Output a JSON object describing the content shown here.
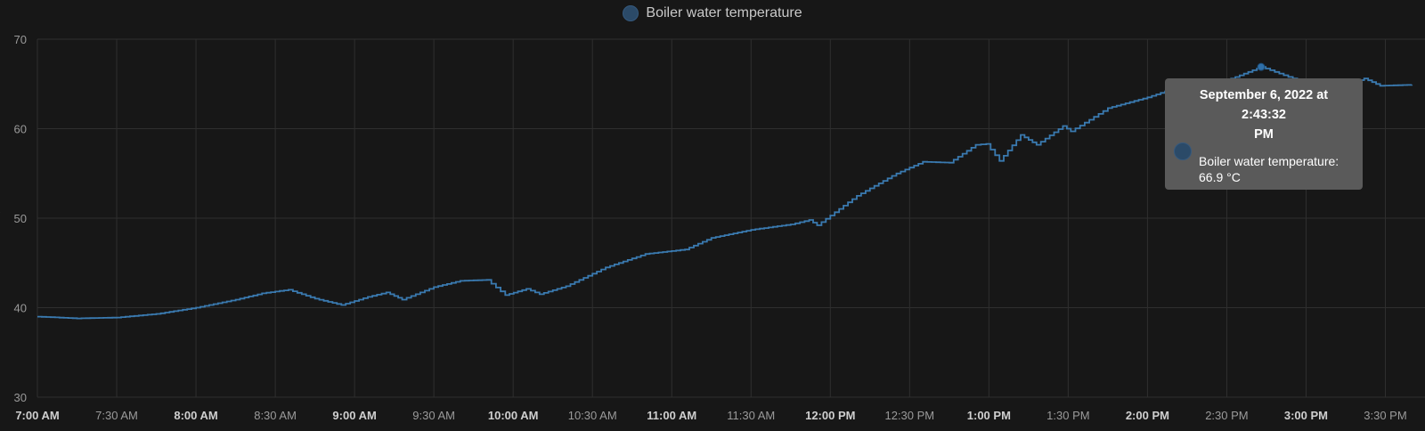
{
  "legend": {
    "label": "Boiler water temperature",
    "color": "#2b4a68"
  },
  "tooltip": {
    "date_line1": "September 6, 2022 at 2:43:32",
    "date_line2": "PM",
    "series_label": "Boiler water temperature:",
    "value": "66.9 °C"
  },
  "chart_data": {
    "type": "line",
    "title": "",
    "series": [
      {
        "name": "Boiler water temperature",
        "color": "#3a7ab0",
        "points": [
          [
            "7:00 AM",
            39.0
          ],
          [
            "7:15 AM",
            38.8
          ],
          [
            "7:30 AM",
            38.9
          ],
          [
            "7:45 AM",
            39.3
          ],
          [
            "8:00 AM",
            40.0
          ],
          [
            "8:15 AM",
            40.9
          ],
          [
            "8:25 AM",
            41.6
          ],
          [
            "8:35 AM",
            42.0
          ],
          [
            "8:45 AM",
            41.0
          ],
          [
            "8:55 AM",
            40.3
          ],
          [
            "9:05 AM",
            41.2
          ],
          [
            "9:12 AM",
            41.7
          ],
          [
            "9:18 AM",
            40.9
          ],
          [
            "9:30 AM",
            42.3
          ],
          [
            "9:40 AM",
            43.0
          ],
          [
            "9:50 AM",
            43.1
          ],
          [
            "9:57 AM",
            41.4
          ],
          [
            "10:05 AM",
            42.1
          ],
          [
            "10:10 AM",
            41.5
          ],
          [
            "10:20 AM",
            42.4
          ],
          [
            "10:35 AM",
            44.5
          ],
          [
            "10:50 AM",
            46.0
          ],
          [
            "11:05 AM",
            46.5
          ],
          [
            "11:15 AM",
            47.8
          ],
          [
            "11:30 AM",
            48.7
          ],
          [
            "11:45 AM",
            49.3
          ],
          [
            "11:52 AM",
            49.8
          ],
          [
            "11:55 AM",
            49.2
          ],
          [
            "12:10 PM",
            52.5
          ],
          [
            "12:25 PM",
            55.0
          ],
          [
            "12:35 PM",
            56.3
          ],
          [
            "12:45 PM",
            56.2
          ],
          [
            "12:55 PM",
            58.2
          ],
          [
            "12:59 PM",
            58.3
          ],
          [
            "1:04 PM",
            56.4
          ],
          [
            "1:12 PM",
            59.3
          ],
          [
            "1:18 PM",
            58.2
          ],
          [
            "1:28 PM",
            60.3
          ],
          [
            "1:31 PM",
            59.7
          ],
          [
            "1:45 PM",
            62.3
          ],
          [
            "2:00 PM",
            63.5
          ],
          [
            "2:15 PM",
            65.0
          ],
          [
            "2:30 PM",
            65.4
          ],
          [
            "2:43 PM",
            66.9
          ],
          [
            "2:55 PM",
            65.6
          ],
          [
            "3:05 PM",
            64.8
          ],
          [
            "3:15 PM",
            64.9
          ],
          [
            "3:22 PM",
            65.6
          ],
          [
            "3:28 PM",
            64.8
          ],
          [
            "3:40 PM",
            64.9
          ]
        ]
      }
    ],
    "x_ticks": [
      {
        "label": "7:00 AM",
        "bold": true
      },
      {
        "label": "7:30 AM",
        "bold": false
      },
      {
        "label": "8:00 AM",
        "bold": true
      },
      {
        "label": "8:30 AM",
        "bold": false
      },
      {
        "label": "9:00 AM",
        "bold": true
      },
      {
        "label": "9:30 AM",
        "bold": false
      },
      {
        "label": "10:00 AM",
        "bold": true
      },
      {
        "label": "10:30 AM",
        "bold": false
      },
      {
        "label": "11:00 AM",
        "bold": true
      },
      {
        "label": "11:30 AM",
        "bold": false
      },
      {
        "label": "12:00 PM",
        "bold": true
      },
      {
        "label": "12:30 PM",
        "bold": false
      },
      {
        "label": "1:00 PM",
        "bold": true
      },
      {
        "label": "1:30 PM",
        "bold": false
      },
      {
        "label": "2:00 PM",
        "bold": true
      },
      {
        "label": "2:30 PM",
        "bold": false
      },
      {
        "label": "3:00 PM",
        "bold": true
      },
      {
        "label": "3:30 PM",
        "bold": false
      }
    ],
    "y_ticks": [
      30,
      40,
      50,
      60,
      70
    ],
    "xlim": [
      "7:00 AM",
      "3:45 PM"
    ],
    "ylim": [
      30,
      70
    ],
    "highlight": {
      "x": "2:43 PM",
      "y": 66.9
    },
    "grid": true,
    "legend_position": "top-center",
    "xlabel": "",
    "ylabel": ""
  },
  "y_axis_side_glyph": "°"
}
